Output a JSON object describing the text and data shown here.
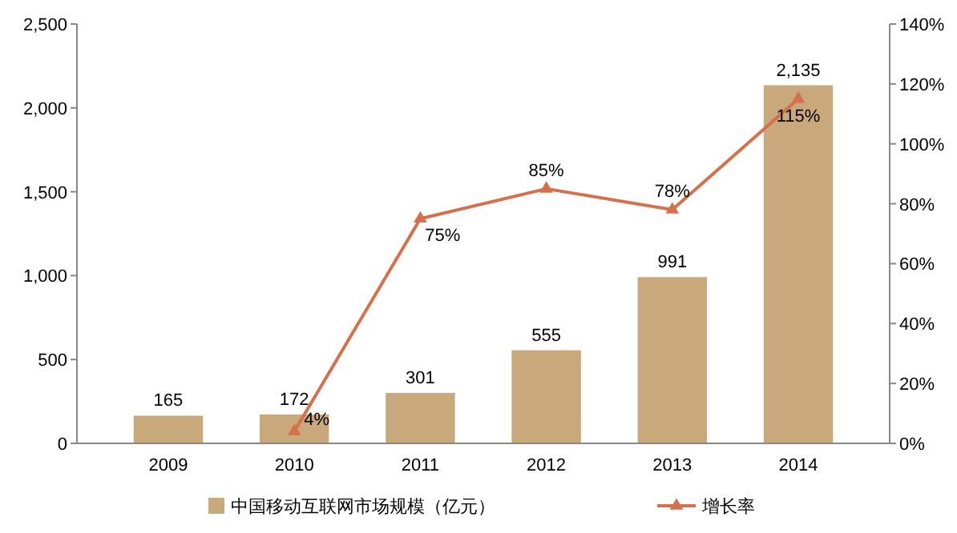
{
  "chart_data": {
    "type": "bar",
    "categories": [
      "2009",
      "2010",
      "2011",
      "2012",
      "2013",
      "2014"
    ],
    "series": [
      {
        "name": "中国移动互联网市场规模（亿元）",
        "color": "#c9a97c",
        "values": [
          165,
          172,
          301,
          555,
          991,
          2135
        ],
        "value_labels": [
          "165",
          "172",
          "301",
          "555",
          "991",
          "2,135"
        ]
      },
      {
        "name": "增长率",
        "type": "line",
        "axis": "y2",
        "color": "#d6704a",
        "marker": "triangle",
        "values": [
          null,
          4,
          75,
          85,
          78,
          115
        ],
        "value_labels": [
          null,
          "4%",
          "75%",
          "85%",
          "78%",
          "115%"
        ]
      }
    ],
    "ylim": [
      0,
      2500
    ],
    "yticks": [
      0,
      {
        "value": 500,
        "label": "500"
      },
      {
        "value": 1000,
        "label": "1,000"
      },
      {
        "value": 1500,
        "label": "1,500"
      },
      {
        "value": 2000,
        "label": "2,000"
      },
      {
        "value": 2500,
        "label": "2,500"
      }
    ],
    "y2lim": [
      0,
      140
    ],
    "y2ticks": [
      {
        "value": 0,
        "label": "0%"
      },
      {
        "value": 20,
        "label": "20%"
      },
      {
        "value": 40,
        "label": "40%"
      },
      {
        "value": 60,
        "label": "60%"
      },
      {
        "value": 80,
        "label": "80%"
      },
      {
        "value": 100,
        "label": "100%"
      },
      {
        "value": 120,
        "label": "120%"
      },
      {
        "value": 140,
        "label": "140%"
      }
    ],
    "legend": "bottom"
  }
}
